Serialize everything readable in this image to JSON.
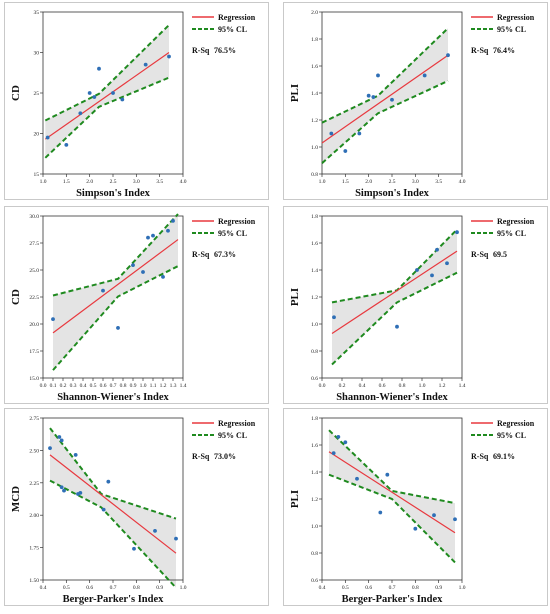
{
  "legend": {
    "regression": "Regression",
    "ci": "95% CL",
    "rsq_label": "R-Sq"
  },
  "colors": {
    "regression": "#e8393f",
    "ci": "#1f8a1f",
    "band": "#e4e4e4",
    "point": "#2f6fb6"
  },
  "chart_data": [
    {
      "type": "scatter",
      "xlabel": "Simpson's Index",
      "ylabel": "CD",
      "xlim": [
        1.0,
        4.0
      ],
      "ylim": [
        15,
        35
      ],
      "xticks": [
        "1.0",
        "1.5",
        "2.0",
        "2.5",
        "3.0",
        "3.5",
        "4.0"
      ],
      "yticks": [
        "15",
        "20",
        "25",
        "30",
        "35"
      ],
      "rsq": "76.5%",
      "points": [
        [
          1.1,
          19.5
        ],
        [
          1.5,
          18.6
        ],
        [
          1.8,
          22.5
        ],
        [
          2.0,
          25.0
        ],
        [
          2.1,
          24.5
        ],
        [
          2.2,
          28.0
        ],
        [
          2.5,
          25.0
        ],
        [
          2.7,
          24.2
        ],
        [
          3.2,
          28.5
        ],
        [
          3.7,
          29.5
        ]
      ],
      "regression": [
        [
          1.05,
          19.3
        ],
        [
          3.7,
          30.0
        ]
      ],
      "ci_upper": [
        [
          1.05,
          21.6
        ],
        [
          2.2,
          24.9
        ],
        [
          3.7,
          33.4
        ]
      ],
      "ci_lower": [
        [
          1.05,
          17.0
        ],
        [
          2.2,
          23.3
        ],
        [
          3.7,
          26.9
        ]
      ]
    },
    {
      "type": "scatter",
      "xlabel": "Simpson's Index",
      "ylabel": "PLI",
      "xlim": [
        1.0,
        4.0
      ],
      "ylim": [
        0.8,
        2.0
      ],
      "xticks": [
        "1.0",
        "1.5",
        "2.0",
        "2.5",
        "3.0",
        "3.5",
        "4.0"
      ],
      "yticks": [
        "0.8",
        "1.0",
        "1.2",
        "1.4",
        "1.6",
        "1.8",
        "2.0"
      ],
      "rsq": "76.4%",
      "points": [
        [
          1.2,
          1.1
        ],
        [
          1.5,
          0.97
        ],
        [
          1.8,
          1.1
        ],
        [
          2.0,
          1.38
        ],
        [
          2.1,
          1.37
        ],
        [
          2.2,
          1.53
        ],
        [
          2.5,
          1.35
        ],
        [
          3.2,
          1.53
        ],
        [
          3.7,
          1.68
        ]
      ],
      "regression": [
        [
          1.0,
          1.03
        ],
        [
          3.7,
          1.68
        ]
      ],
      "ci_upper": [
        [
          1.0,
          1.18
        ],
        [
          2.2,
          1.38
        ],
        [
          3.7,
          1.88
        ]
      ],
      "ci_lower": [
        [
          1.0,
          0.88
        ],
        [
          2.2,
          1.25
        ],
        [
          3.7,
          1.49
        ]
      ]
    },
    {
      "type": "scatter",
      "xlabel": "Shannon-Wiener's Index",
      "ylabel": "CD",
      "xlim": [
        0.0,
        1.4
      ],
      "ylim": [
        13.5,
        30.0
      ],
      "xticks": [
        "0.0",
        "0.1",
        "0.2",
        "0.3",
        "0.4",
        "0.5",
        "0.6",
        "0.7",
        "0.8",
        "0.9",
        "1.0",
        "1.1",
        "1.2",
        "1.3",
        "1.4"
      ],
      "yticks": [
        "15.0",
        "17.5",
        "20.0",
        "22.5",
        "25.0",
        "27.5",
        "30.0"
      ],
      "rsq": "67.3%",
      "points": [
        [
          0.1,
          19.5
        ],
        [
          0.6,
          22.4
        ],
        [
          0.75,
          18.6
        ],
        [
          0.9,
          25.0
        ],
        [
          1.0,
          24.3
        ],
        [
          1.05,
          27.8
        ],
        [
          1.1,
          28.0
        ],
        [
          1.2,
          23.8
        ],
        [
          1.25,
          28.5
        ],
        [
          1.3,
          29.5
        ]
      ],
      "regression": [
        [
          0.1,
          18.1
        ],
        [
          1.35,
          27.6
        ]
      ],
      "ci_upper": [
        [
          0.1,
          21.9
        ],
        [
          0.75,
          23.6
        ],
        [
          1.35,
          30.2
        ]
      ],
      "ci_lower": [
        [
          0.1,
          14.3
        ],
        [
          0.75,
          21.8
        ],
        [
          1.35,
          24.9
        ]
      ]
    },
    {
      "type": "scatter",
      "xlabel": "Shannon-Wiener's Index",
      "ylabel": "PLI",
      "xlim": [
        0.0,
        1.4
      ],
      "ylim": [
        0.6,
        1.8
      ],
      "xticks": [
        "0.0",
        "0.2",
        "0.4",
        "0.6",
        "0.8",
        "1.0",
        "1.2",
        "1.4"
      ],
      "yticks": [
        "0.6",
        "0.8",
        "1.0",
        "1.2",
        "1.4",
        "1.6",
        "1.8"
      ],
      "rsq": "69.5",
      "points": [
        [
          0.12,
          1.05
        ],
        [
          0.75,
          0.98
        ],
        [
          0.95,
          1.4
        ],
        [
          1.1,
          1.36
        ],
        [
          1.15,
          1.55
        ],
        [
          1.25,
          1.45
        ],
        [
          1.35,
          1.68
        ]
      ],
      "regression": [
        [
          0.1,
          0.93
        ],
        [
          1.35,
          1.54
        ]
      ],
      "ci_upper": [
        [
          0.1,
          1.16
        ],
        [
          0.75,
          1.25
        ],
        [
          1.35,
          1.7
        ]
      ],
      "ci_lower": [
        [
          0.1,
          0.7
        ],
        [
          0.75,
          1.16
        ],
        [
          1.35,
          1.38
        ]
      ]
    },
    {
      "type": "scatter",
      "xlabel": "Berger-Parker's Index",
      "ylabel": "MCD",
      "xlim": [
        0.4,
        1.0
      ],
      "ylim": [
        1.4,
        2.85
      ],
      "xticks": [
        "0.4",
        "0.5",
        "0.6",
        "0.7",
        "0.8",
        "0.9",
        "1.0"
      ],
      "yticks": [
        "1.50",
        "1.75",
        "2.00",
        "2.25",
        "2.50",
        "2.75"
      ],
      "rsq": "73.0%",
      "points": [
        [
          0.43,
          2.58
        ],
        [
          0.47,
          2.68
        ],
        [
          0.48,
          2.65
        ],
        [
          0.48,
          2.23
        ],
        [
          0.49,
          2.2
        ],
        [
          0.54,
          2.52
        ],
        [
          0.55,
          2.17
        ],
        [
          0.56,
          2.18
        ],
        [
          0.66,
          2.03
        ],
        [
          0.68,
          2.28
        ],
        [
          0.79,
          1.68
        ],
        [
          0.88,
          1.84
        ],
        [
          0.97,
          1.77
        ]
      ],
      "regression": [
        [
          0.43,
          2.52
        ],
        [
          0.97,
          1.64
        ]
      ],
      "ci_upper": [
        [
          0.43,
          2.76
        ],
        [
          0.65,
          2.17
        ],
        [
          0.97,
          1.95
        ]
      ],
      "ci_lower": [
        [
          0.43,
          2.29
        ],
        [
          0.65,
          2.05
        ],
        [
          0.97,
          1.33
        ]
      ]
    },
    {
      "type": "scatter",
      "xlabel": "Berger-Parker's Index",
      "ylabel": "PLI",
      "xlim": [
        0.4,
        1.0
      ],
      "ylim": [
        0.6,
        1.8
      ],
      "xticks": [
        "0.4",
        "0.5",
        "0.6",
        "0.7",
        "0.8",
        "0.9",
        "1.0"
      ],
      "yticks": [
        "0.6",
        "0.8",
        "1.0",
        "1.2",
        "1.4",
        "1.6",
        "1.8"
      ],
      "rsq": "69.1%",
      "points": [
        [
          0.45,
          1.54
        ],
        [
          0.47,
          1.66
        ],
        [
          0.5,
          1.62
        ],
        [
          0.55,
          1.35
        ],
        [
          0.65,
          1.1
        ],
        [
          0.68,
          1.38
        ],
        [
          0.8,
          0.98
        ],
        [
          0.88,
          1.08
        ],
        [
          0.97,
          1.05
        ]
      ],
      "regression": [
        [
          0.43,
          1.55
        ],
        [
          0.97,
          0.95
        ]
      ],
      "ci_upper": [
        [
          0.43,
          1.71
        ],
        [
          0.7,
          1.26
        ],
        [
          0.97,
          1.17
        ]
      ],
      "ci_lower": [
        [
          0.43,
          1.38
        ],
        [
          0.7,
          1.2
        ],
        [
          0.97,
          0.73
        ]
      ]
    }
  ]
}
